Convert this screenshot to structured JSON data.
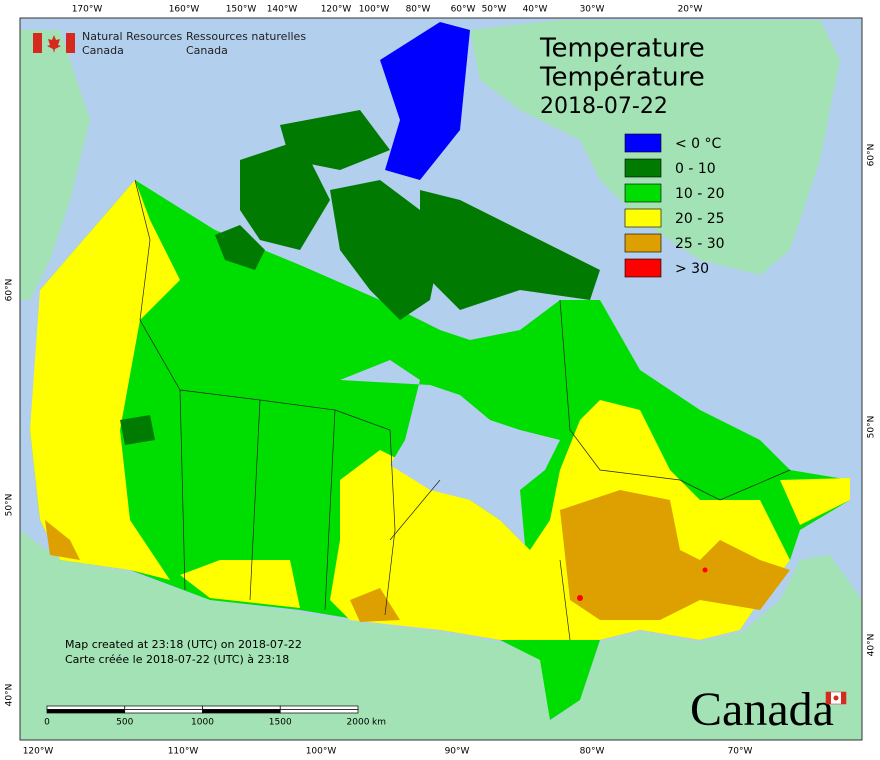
{
  "header": {
    "agency_en": [
      "Natural Resources",
      "Canada"
    ],
    "agency_fr": [
      "Ressources naturelles",
      "Canada"
    ]
  },
  "title": [
    "Temperature",
    "Température",
    "2018-07-22"
  ],
  "legend": [
    {
      "label": "< 0 °C",
      "color": "#0000ff"
    },
    {
      "label": "0 - 10",
      "color": "#007a00"
    },
    {
      "label": "10 - 20",
      "color": "#00dd00"
    },
    {
      "label": "20 - 25",
      "color": "#ffff00"
    },
    {
      "label": "25 - 30",
      "color": "#dda000"
    },
    {
      "label": "> 30",
      "color": "#ff0000"
    }
  ],
  "notes": [
    "Map created at 23:18 (UTC) on 2018-07-22",
    "Carte créée le 2018-07-22 (UTC) à 23:18"
  ],
  "scale": {
    "ticks": [
      0,
      500,
      1000,
      1500,
      2000
    ],
    "unit": "km"
  },
  "graticule": {
    "top": [
      "170°W",
      "160°W",
      "150°W",
      "140°W",
      "120°W",
      "100°W",
      "80°W",
      "60°W",
      "50°W",
      "40°W",
      "30°W",
      "20°W"
    ],
    "bottom": [
      "120°W",
      "110°W",
      "100°W",
      "90°W",
      "80°W",
      "70°W"
    ],
    "left": [
      "60°N",
      "50°N",
      "40°N"
    ],
    "right": [
      "60°N",
      "50°N",
      "40°N"
    ]
  },
  "wordmark": "Canada"
}
